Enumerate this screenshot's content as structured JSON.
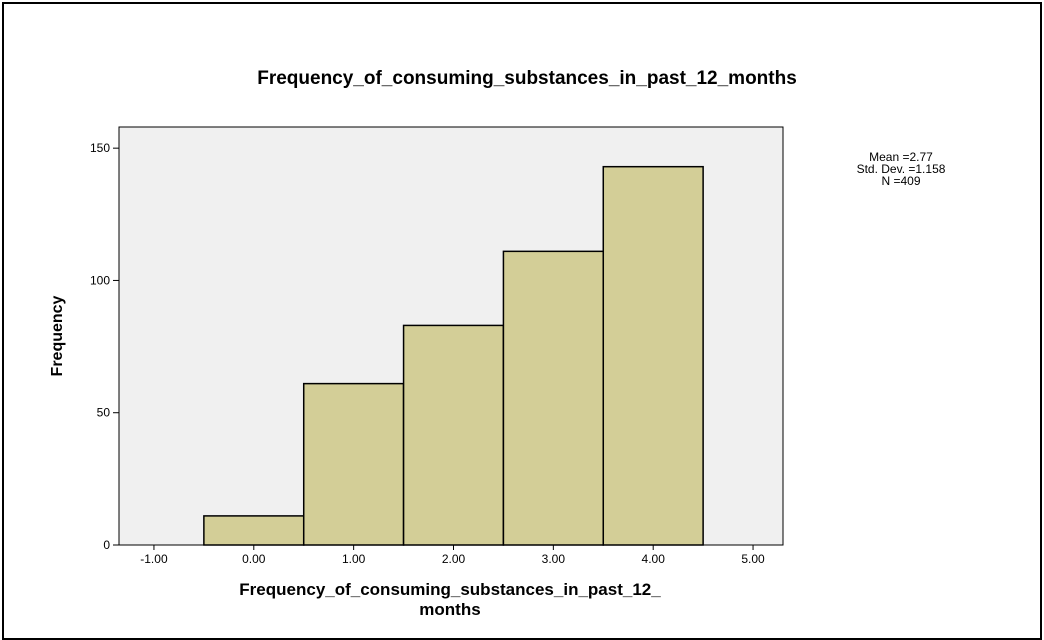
{
  "chart_data": {
    "type": "bar",
    "title": "Frequency_of_consuming_substances_in_past_12_months",
    "xlabel_lines": [
      "Frequency_of_consuming_substances_in_past_12_",
      "months"
    ],
    "ylabel": "Frequency",
    "x_ticks": [
      "-1.00",
      "0.00",
      "1.00",
      "2.00",
      "3.00",
      "4.00",
      "5.00"
    ],
    "y_ticks": [
      "0",
      "50",
      "100",
      "150"
    ],
    "xlim": [
      -1.35,
      5.3
    ],
    "ylim": [
      0,
      158
    ],
    "categories": [
      "0.00",
      "1.00",
      "2.00",
      "3.00",
      "4.00"
    ],
    "bin_centers": [
      0,
      1,
      2,
      3,
      4
    ],
    "bin_width": 1,
    "values": [
      11,
      61,
      83,
      111,
      143
    ],
    "stats": [
      "Mean =2.77",
      "Std. Dev. =1.158",
      "N =409"
    ],
    "colors": {
      "bar_fill": "#d3ce97",
      "plot_bg": "#f0f0f0",
      "bar_stroke": "#000000"
    },
    "grid": false,
    "legend": "top-right"
  }
}
